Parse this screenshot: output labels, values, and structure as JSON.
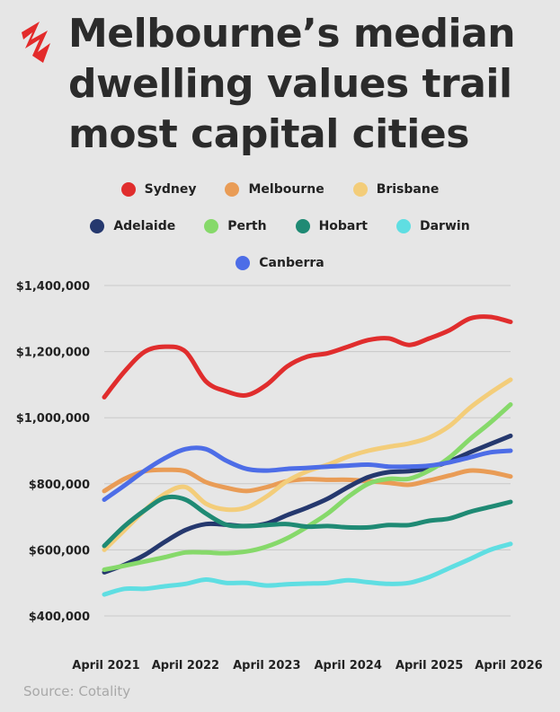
{
  "title": "Melbourne’s median dwelling values trail most capital cities",
  "source": "Source: Cotality",
  "colors": {
    "background": "#e6e6e6",
    "logo": "#e32b2b"
  },
  "logo_icon": "sbs-news-logo-icon",
  "chart_data": {
    "type": "line",
    "title": "Melbourne’s median dwelling values trail most capital cities",
    "xlabel": "",
    "ylabel": "",
    "x": [
      2021.25,
      2021.5,
      2021.75,
      2022.0,
      2022.25,
      2022.5,
      2022.75,
      2023.0,
      2023.25,
      2023.5,
      2023.75,
      2024.0,
      2024.25,
      2024.5,
      2024.75,
      2025.0,
      2025.25,
      2025.5,
      2025.75,
      2026.0,
      2026.25
    ],
    "x_ticks": [
      {
        "value": 2021.25,
        "label": "April 2021"
      },
      {
        "value": 2022.25,
        "label": "April 2022"
      },
      {
        "value": 2023.25,
        "label": "April 2023"
      },
      {
        "value": 2024.25,
        "label": "April 2024"
      },
      {
        "value": 2025.25,
        "label": "April 2025"
      },
      {
        "value": 2026.25,
        "label": "April 2026"
      }
    ],
    "y_ticks": [
      {
        "value": 400000,
        "label": "$400,000"
      },
      {
        "value": 600000,
        "label": "$600,000"
      },
      {
        "value": 800000,
        "label": "$800,000"
      },
      {
        "value": 1000000,
        "label": "$1,000,000"
      },
      {
        "value": 1200000,
        "label": "$1,200,000"
      },
      {
        "value": 1400000,
        "label": "$1,400,000"
      }
    ],
    "xlim": [
      2021.25,
      2026.25
    ],
    "ylim": [
      400000,
      1400000
    ],
    "grid": true,
    "legend_position": "top",
    "series": [
      {
        "name": "Sydney",
        "color": "#e02d2d",
        "values": [
          1062000,
          1140000,
          1200000,
          1215000,
          1200000,
          1110000,
          1080000,
          1068000,
          1100000,
          1155000,
          1185000,
          1195000,
          1215000,
          1235000,
          1240000,
          1220000,
          1240000,
          1265000,
          1300000,
          1305000,
          1290000
        ]
      },
      {
        "name": "Melbourne",
        "color": "#e99c56",
        "values": [
          778000,
          815000,
          838000,
          842000,
          838000,
          805000,
          788000,
          778000,
          790000,
          808000,
          814000,
          812000,
          812000,
          808000,
          803000,
          797000,
          810000,
          825000,
          840000,
          835000,
          822000
        ]
      },
      {
        "name": "Brisbane",
        "color": "#f3cd7a",
        "values": [
          600000,
          660000,
          720000,
          770000,
          790000,
          740000,
          722000,
          728000,
          762000,
          808000,
          838000,
          858000,
          882000,
          900000,
          912000,
          922000,
          940000,
          975000,
          1030000,
          1075000,
          1115000
        ]
      },
      {
        "name": "Adelaide",
        "color": "#25386e",
        "values": [
          532000,
          555000,
          585000,
          625000,
          660000,
          678000,
          676000,
          672000,
          680000,
          705000,
          728000,
          755000,
          790000,
          820000,
          835000,
          838000,
          848000,
          868000,
          895000,
          920000,
          945000
        ]
      },
      {
        "name": "Perth",
        "color": "#86d96a",
        "values": [
          540000,
          552000,
          565000,
          578000,
          592000,
          592000,
          590000,
          595000,
          610000,
          635000,
          670000,
          710000,
          760000,
          800000,
          815000,
          815000,
          840000,
          880000,
          935000,
          985000,
          1040000
        ]
      },
      {
        "name": "Hobart",
        "color": "#1f8a74",
        "values": [
          612000,
          672000,
          720000,
          758000,
          752000,
          710000,
          676000,
          672000,
          675000,
          678000,
          670000,
          672000,
          668000,
          668000,
          675000,
          675000,
          688000,
          695000,
          715000,
          730000,
          745000
        ]
      },
      {
        "name": "Darwin",
        "color": "#5fdee2",
        "values": [
          465000,
          482000,
          482000,
          490000,
          497000,
          510000,
          500000,
          500000,
          492000,
          496000,
          498000,
          500000,
          508000,
          502000,
          497000,
          500000,
          518000,
          545000,
          572000,
          600000,
          618000
        ]
      },
      {
        "name": "Canberra",
        "color": "#4d6de7",
        "values": [
          752000,
          795000,
          840000,
          878000,
          905000,
          905000,
          870000,
          845000,
          840000,
          845000,
          848000,
          852000,
          855000,
          858000,
          852000,
          852000,
          855000,
          865000,
          880000,
          895000,
          900000
        ]
      }
    ]
  }
}
